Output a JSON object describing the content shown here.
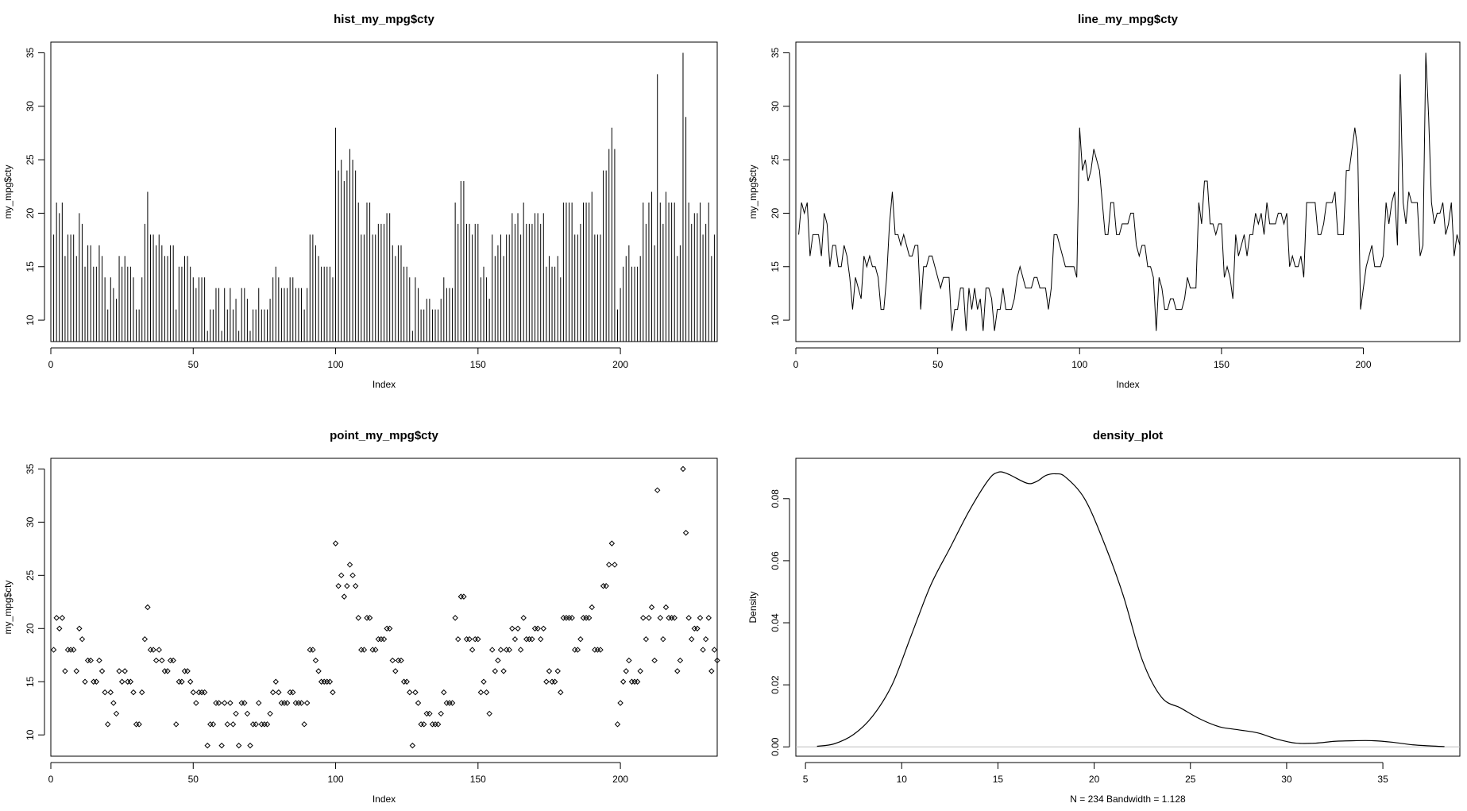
{
  "chart_data": [
    {
      "type": "bar",
      "title": "hist_my_mpg$cty",
      "xlabel": "Index",
      "ylabel": "my_mpg$cty",
      "xlim": [
        0,
        234
      ],
      "ylim": [
        8,
        36
      ],
      "xticks": [
        0,
        50,
        100,
        150,
        200
      ],
      "yticks": [
        10,
        15,
        20,
        25,
        30,
        35
      ],
      "grid": false,
      "y": [
        18,
        21,
        20,
        21,
        16,
        18,
        18,
        18,
        16,
        20,
        19,
        15,
        17,
        17,
        15,
        15,
        17,
        16,
        14,
        11,
        14,
        13,
        12,
        16,
        15,
        16,
        15,
        15,
        14,
        11,
        11,
        14,
        19,
        22,
        18,
        18,
        17,
        18,
        17,
        16,
        16,
        17,
        17,
        11,
        15,
        15,
        16,
        16,
        15,
        14,
        13,
        14,
        14,
        14,
        9,
        11,
        11,
        13,
        13,
        9,
        13,
        11,
        13,
        11,
        12,
        9,
        13,
        13,
        12,
        9,
        11,
        11,
        13,
        11,
        11,
        11,
        12,
        14,
        15,
        14,
        13,
        13,
        13,
        14,
        14,
        13,
        13,
        13,
        11,
        13,
        18,
        18,
        17,
        16,
        15,
        15,
        15,
        15,
        14,
        28,
        24,
        25,
        23,
        24,
        26,
        25,
        24,
        21,
        18,
        18,
        21,
        21,
        18,
        18,
        19,
        19,
        19,
        20,
        20,
        17,
        16,
        17,
        17,
        15,
        15,
        14,
        9,
        14,
        13,
        11,
        11,
        12,
        12,
        11,
        11,
        11,
        12,
        14,
        13,
        13,
        13,
        21,
        19,
        23,
        23,
        19,
        19,
        18,
        19,
        19,
        14,
        15,
        14,
        12,
        18,
        16,
        17,
        18,
        16,
        18,
        18,
        20,
        19,
        20,
        18,
        21,
        19,
        19,
        19,
        20,
        20,
        19,
        20,
        15,
        16,
        15,
        15,
        16,
        14,
        21,
        21,
        21,
        21,
        18,
        18,
        19,
        21,
        21,
        21,
        22,
        18,
        18,
        18,
        24,
        24,
        26,
        28,
        26,
        11,
        13,
        15,
        16,
        17,
        15,
        15,
        15,
        16,
        21,
        19,
        21,
        22,
        17,
        33,
        21,
        19,
        22,
        21,
        21,
        21,
        16,
        17,
        35,
        29,
        21,
        19,
        20,
        20,
        21,
        18,
        19,
        21,
        16,
        18,
        17
      ]
    },
    {
      "type": "line",
      "title": "line_my_mpg$cty",
      "xlabel": "Index",
      "ylabel": "my_mpg$cty",
      "xlim": [
        0,
        234
      ],
      "ylim": [
        8,
        36
      ],
      "xticks": [
        0,
        50,
        100,
        150,
        200
      ],
      "yticks": [
        10,
        15,
        20,
        25,
        30,
        35
      ],
      "grid": false,
      "y_source": "same values as hist_my_mpg$cty (index 1..234)"
    },
    {
      "type": "scatter",
      "title": "point_my_mpg$cty",
      "xlabel": "Index",
      "ylabel": "my_mpg$cty",
      "xlim": [
        0,
        234
      ],
      "ylim": [
        8,
        36
      ],
      "xticks": [
        0,
        50,
        100,
        150,
        200
      ],
      "yticks": [
        10,
        15,
        20,
        25,
        30,
        35
      ],
      "grid": false,
      "y_source": "same values as hist_my_mpg$cty (index 1..234)"
    },
    {
      "type": "line",
      "title": "density_plot",
      "xlabel": "N = 234   Bandwidth = 1.128",
      "ylabel": "Density",
      "xlim": [
        4.5,
        39
      ],
      "ylim": [
        -0.003,
        0.093
      ],
      "xticks": [
        5,
        10,
        15,
        20,
        25,
        30,
        35
      ],
      "yticks": [
        0.0,
        0.02,
        0.04,
        0.06,
        0.08
      ],
      "ytick_labels": [
        "0.00",
        "0.02",
        "0.04",
        "0.06",
        "0.08"
      ],
      "baseline": 0,
      "baseline_color": "#bebebe",
      "grid": false,
      "x": [
        5.6,
        6.5,
        7.5,
        8.5,
        9.5,
        10.5,
        11.5,
        12.5,
        13.5,
        14.5,
        15.0,
        15.5,
        16.5,
        17.0,
        17.5,
        18.0,
        18.5,
        19.5,
        20.5,
        21.5,
        22.5,
        23.5,
        24.5,
        25.5,
        26.5,
        27.5,
        28.5,
        29.5,
        30.5,
        31.5,
        32.5,
        33.5,
        34.5,
        35.5,
        36.5,
        37.5,
        38.2
      ],
      "y": [
        0.0002,
        0.001,
        0.004,
        0.01,
        0.02,
        0.036,
        0.052,
        0.064,
        0.076,
        0.086,
        0.0885,
        0.088,
        0.085,
        0.0855,
        0.0875,
        0.088,
        0.087,
        0.08,
        0.066,
        0.049,
        0.028,
        0.016,
        0.0125,
        0.009,
        0.0065,
        0.0055,
        0.0045,
        0.0025,
        0.0012,
        0.0012,
        0.0018,
        0.002,
        0.002,
        0.0015,
        0.0007,
        0.0003,
        0.0001
      ]
    }
  ]
}
